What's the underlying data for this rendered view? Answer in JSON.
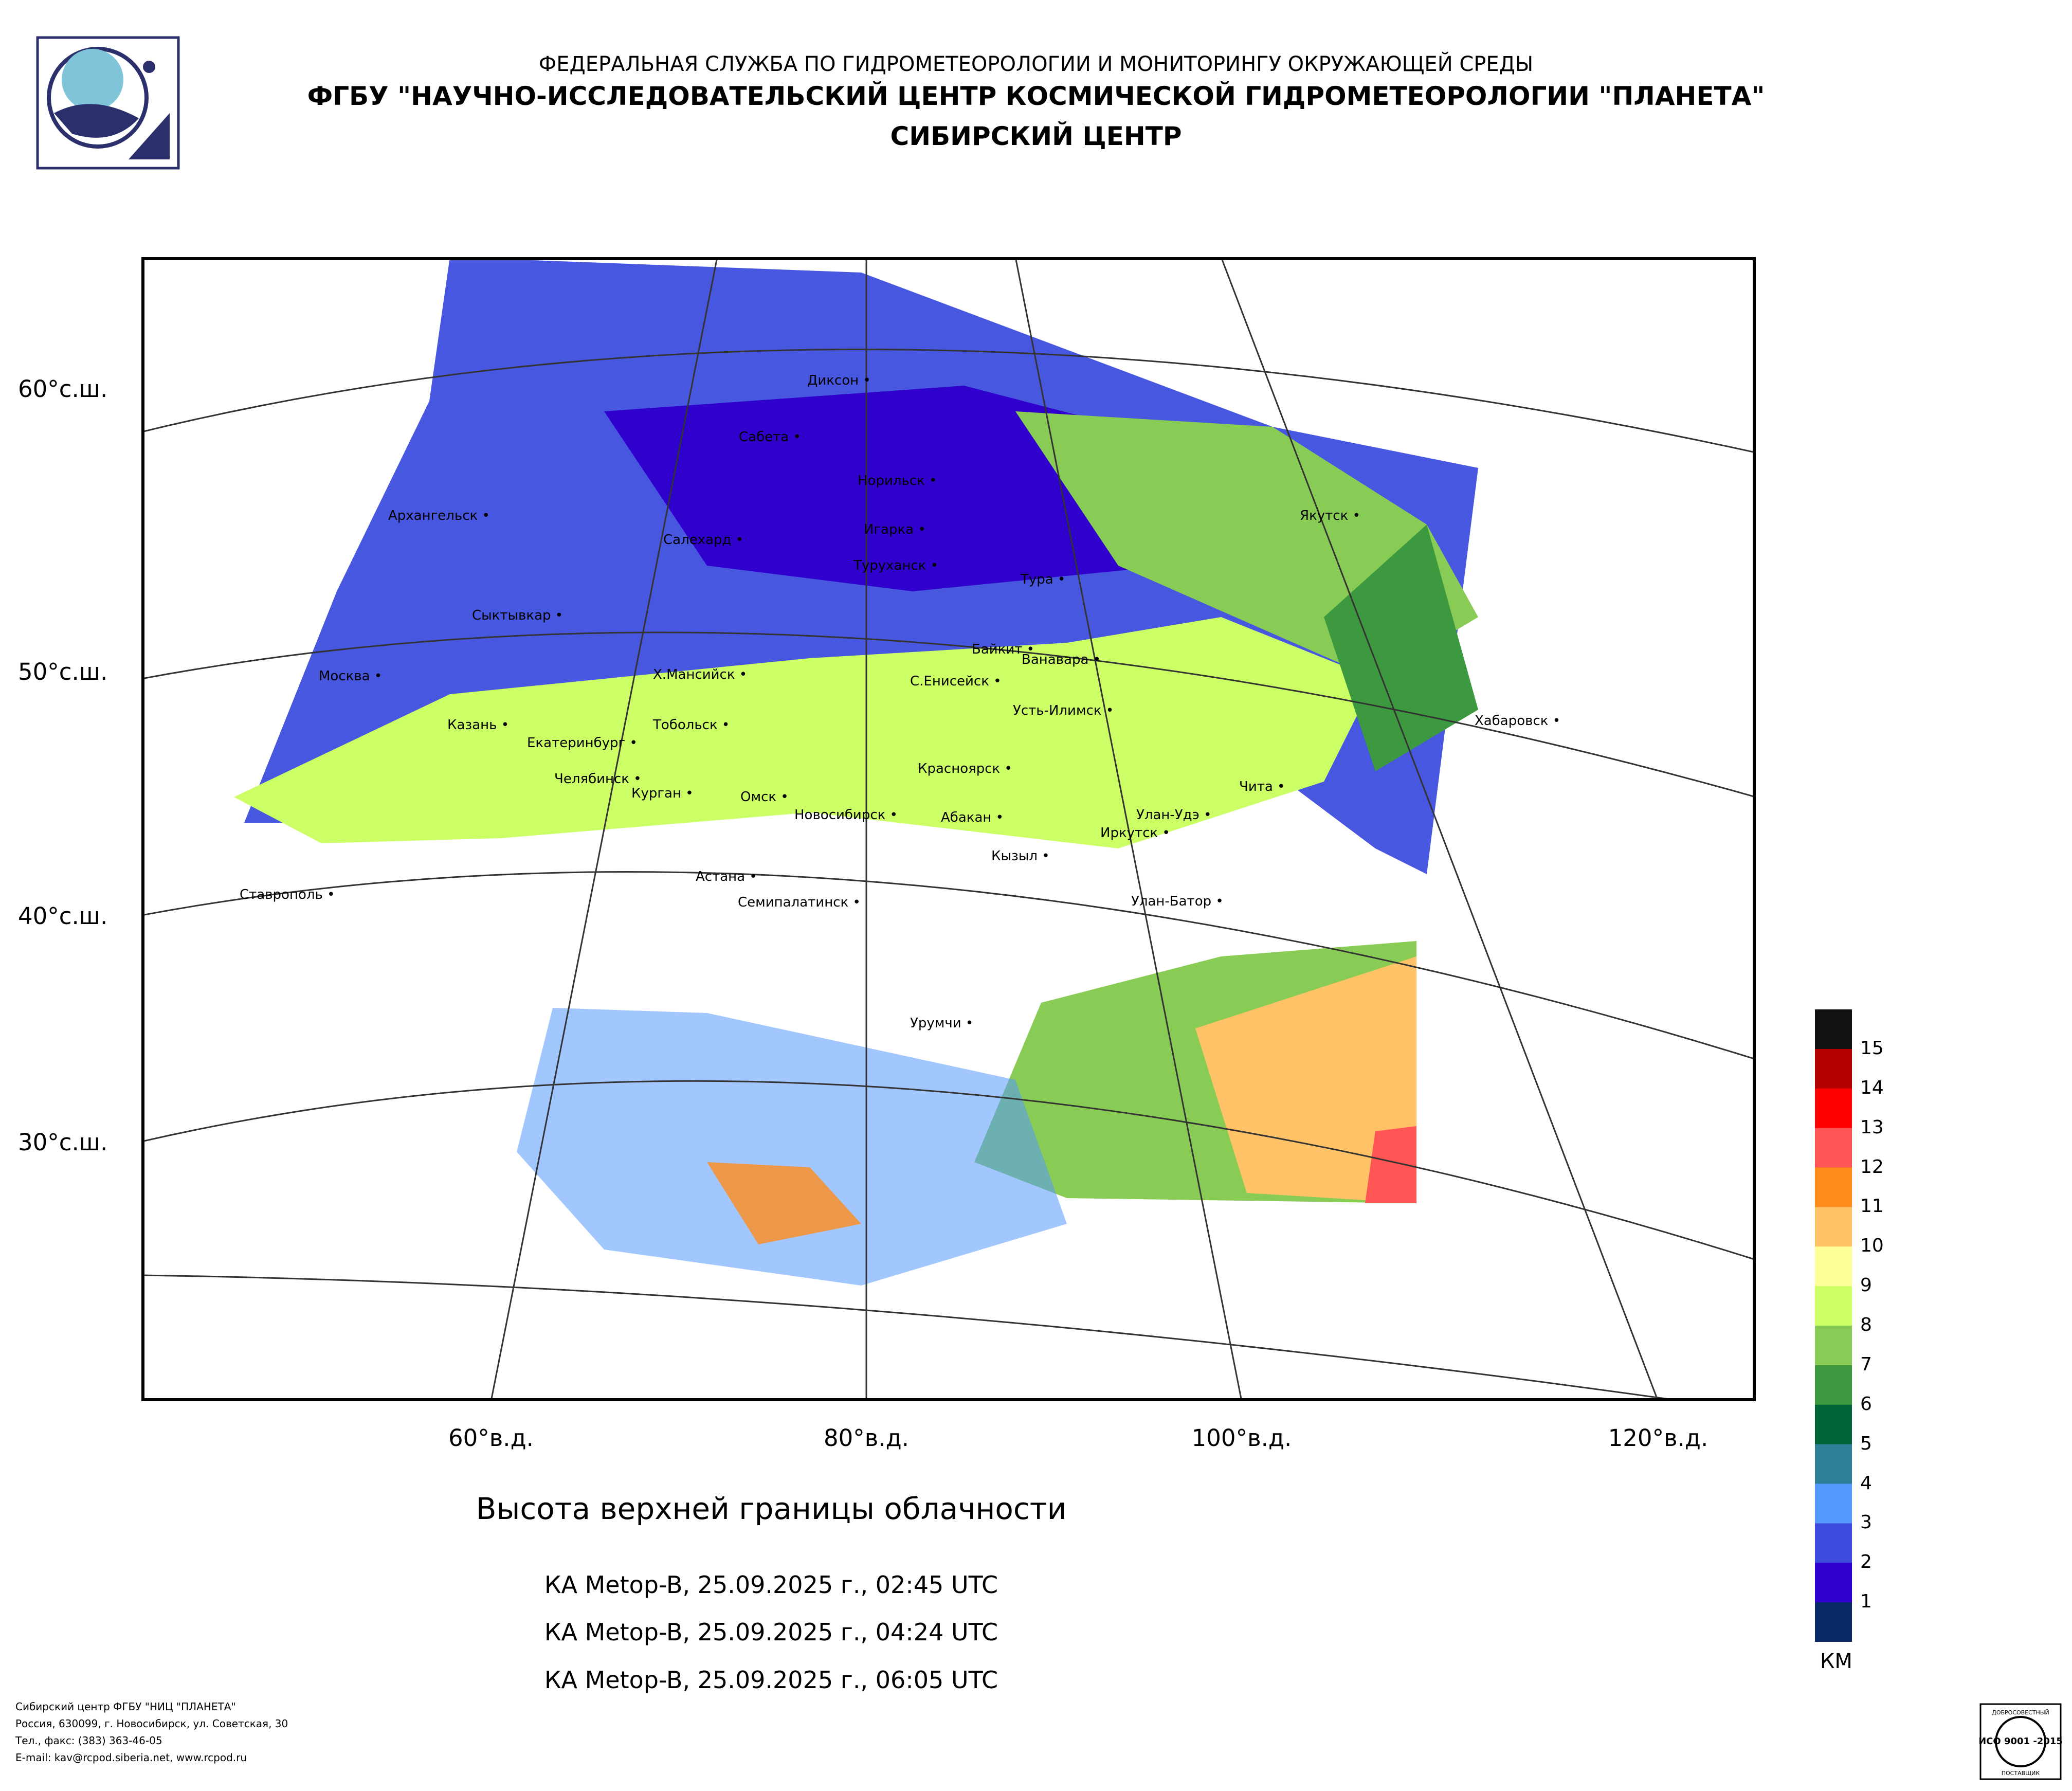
{
  "header": {
    "line1": "ФЕДЕРАЛЬНАЯ СЛУЖБА ПО ГИДРОМЕТЕОРОЛОГИИ И МОНИТОРИНГУ ОКРУЖАЮЩЕЙ СРЕДЫ",
    "line2": "ФГБУ \"НАУЧНО-ИССЛЕДОВАТЕЛЬСКИЙ ЦЕНТР КОСМИЧЕСКОЙ ГИДРОМЕТЕОРОЛОГИИ \"ПЛАНЕТА\"",
    "line3": "СИБИРСКИЙ ЦЕНТР"
  },
  "product": {
    "title": "Высота верхней границы облачности",
    "passes": [
      "КА Metop-B, 25.09.2025 г., 02:45 UTC",
      "КА Metop-B, 25.09.2025 г., 04:24 UTC",
      "КА Metop-B, 25.09.2025 г., 06:05 UTC"
    ]
  },
  "axes": {
    "lat_labels": [
      "60°с.ш.",
      "50°с.ш.",
      "40°с.ш.",
      "30°с.ш."
    ],
    "lon_labels": [
      "60°в.д.",
      "80°в.д.",
      "100°в.д.",
      "120°в.д."
    ]
  },
  "cities": [
    "Диксон",
    "Сабета",
    "Норильск",
    "Архангельск",
    "Салехард",
    "Игарка",
    "Туруханск",
    "Тура",
    "Якутск",
    "Сыктывкар",
    "Байкит",
    "Ванавара",
    "Москва",
    "Х.Мансийск",
    "С.Енисейск",
    "Усть-Илимск",
    "Хабаровск",
    "Казань",
    "Екатеринбург",
    "Тобольск",
    "Челябинск",
    "Курган",
    "Омск",
    "Новосибирск",
    "Красноярск",
    "Абакан",
    "Чита",
    "Улан-Удэ",
    "Иркутск",
    "Кызыл",
    "Астана",
    "Семипалатинск",
    "Ставрополь",
    "Улан-Батор",
    "Урумчи"
  ],
  "legend": {
    "unit": "КМ",
    "levels": [
      "15",
      "14",
      "13",
      "12",
      "11",
      "10",
      "9",
      "8",
      "7",
      "6",
      "5",
      "4",
      "3",
      "2",
      "1"
    ],
    "colors": [
      "#111111",
      "#b30000",
      "#ff0000",
      "#ff5555",
      "#ff8c1a",
      "#ffc266",
      "#ffff99",
      "#ccff66",
      "#88cc55",
      "#3d9940",
      "#00663a",
      "#2e8099",
      "#5599ff",
      "#3c4cdd",
      "#3000cc",
      "#0a2a66"
    ]
  },
  "footer": {
    "address": [
      "Сибирский центр ФГБУ \"НИЦ \"ПЛАНЕТА\"",
      "Россия, 630099, г. Новосибирск, ул. Советская, 30",
      "Тел., факс: (383) 363-46-05",
      "E-mail: kav@rcpod.siberia.net, www.rcpod.ru"
    ],
    "cert_top": "ДОБРОСОВЕСТНЫЙ",
    "cert_mid": "ИСО 9001 -2015",
    "cert_bottom": "ПОСТАВЩИК"
  }
}
